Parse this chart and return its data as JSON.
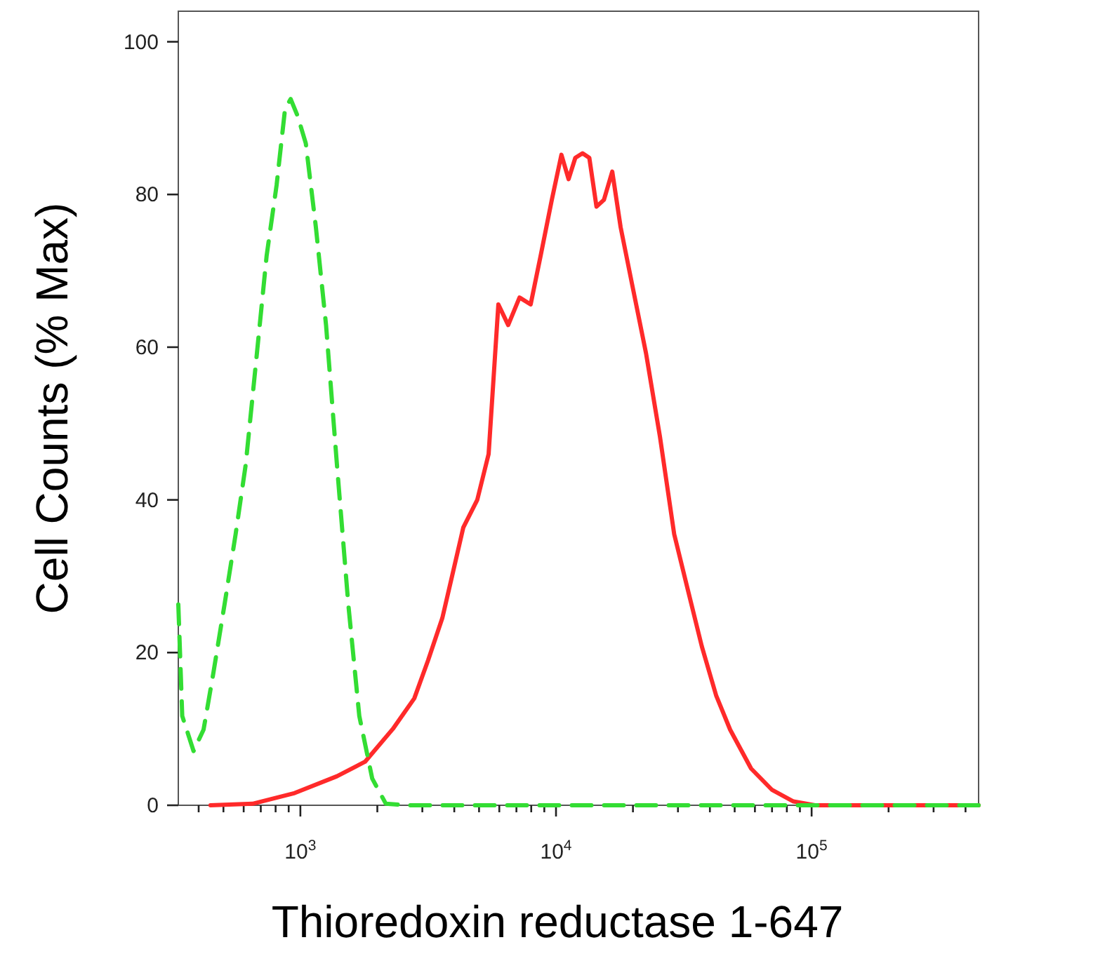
{
  "chart_data": {
    "type": "line",
    "xlabel": "Thioredoxin reductase 1-647",
    "ylabel": "Cell Counts (% Max)",
    "log": "x",
    "xlim": [
      333,
      450000
    ],
    "ylim": [
      0,
      104
    ],
    "xticks": [
      {
        "value": 400,
        "label": null
      },
      {
        "value": 500,
        "label": null
      },
      {
        "value": 600,
        "label": null
      },
      {
        "value": 700,
        "label": null
      },
      {
        "value": 800,
        "label": null
      },
      {
        "value": 900,
        "label": null
      },
      {
        "value": 1000,
        "label": "10$^{3}$"
      },
      {
        "value": 2000,
        "label": null
      },
      {
        "value": 3000,
        "label": null
      },
      {
        "value": 4000,
        "label": null
      },
      {
        "value": 5000,
        "label": null
      },
      {
        "value": 6000,
        "label": null
      },
      {
        "value": 7000,
        "label": null
      },
      {
        "value": 8000,
        "label": null
      },
      {
        "value": 9000,
        "label": null
      },
      {
        "value": 10000,
        "label": "10$^{4}$"
      },
      {
        "value": 20000,
        "label": null
      },
      {
        "value": 30000,
        "label": null
      },
      {
        "value": 40000,
        "label": null
      },
      {
        "value": 50000,
        "label": null
      },
      {
        "value": 60000,
        "label": null
      },
      {
        "value": 70000,
        "label": null
      },
      {
        "value": 80000,
        "label": null
      },
      {
        "value": 90000,
        "label": null
      },
      {
        "value": 100000,
        "label": "10$^{5}$"
      },
      {
        "value": 200000,
        "label": null
      },
      {
        "value": 300000,
        "label": null
      },
      {
        "value": 400000,
        "label": null
      }
    ],
    "yticks": [
      0,
      20,
      40,
      60,
      80,
      100
    ],
    "grid": false,
    "marker": "none",
    "series": [
      {
        "color": "#ff2a2a",
        "line_style": "solid",
        "x": [
          445,
          650,
          950,
          1390,
          1790,
          2300,
          2790,
          3160,
          3590,
          3920,
          4340,
          4920,
          5450,
          5950,
          6500,
          7200,
          7960,
          8710,
          9630,
          10500,
          11200,
          11900,
          12700,
          13500,
          14400,
          15400,
          16600,
          17900,
          19800,
          22500,
          25500,
          29000,
          32800,
          37200,
          42300,
          48000,
          58000,
          70100,
          84900,
          103000,
          450000
        ],
        "values": [
          0,
          0.2,
          1.6,
          3.8,
          5.7,
          10,
          14,
          19,
          24.5,
          30,
          36.4,
          40,
          46,
          65.6,
          62.9,
          66.5,
          65.6,
          72,
          79.3,
          85.2,
          82,
          84.8,
          85.4,
          84.8,
          78.4,
          79.3,
          83,
          75.7,
          68.4,
          59.2,
          48.3,
          35.5,
          28.2,
          20.8,
          14.4,
          9.9,
          4.8,
          2,
          0.5,
          0,
          0
        ]
      },
      {
        "color": "#33dd33",
        "line_style": "dashed",
        "x": [
          333,
          345,
          382,
          418,
          456,
          505,
          558,
          611,
          676,
          738,
          807,
          871,
          916,
          975,
          1050,
          1150,
          1260,
          1390,
          1540,
          1700,
          1910,
          2160,
          2620,
          450000
        ],
        "values": [
          26.3,
          11.7,
          7.1,
          9.9,
          17.2,
          26.3,
          35.5,
          44.6,
          59.2,
          72,
          81.2,
          91.2,
          92.5,
          90.3,
          86.7,
          75.7,
          62.9,
          44.6,
          26.3,
          11.7,
          3.5,
          0.2,
          0,
          0
        ]
      }
    ]
  }
}
